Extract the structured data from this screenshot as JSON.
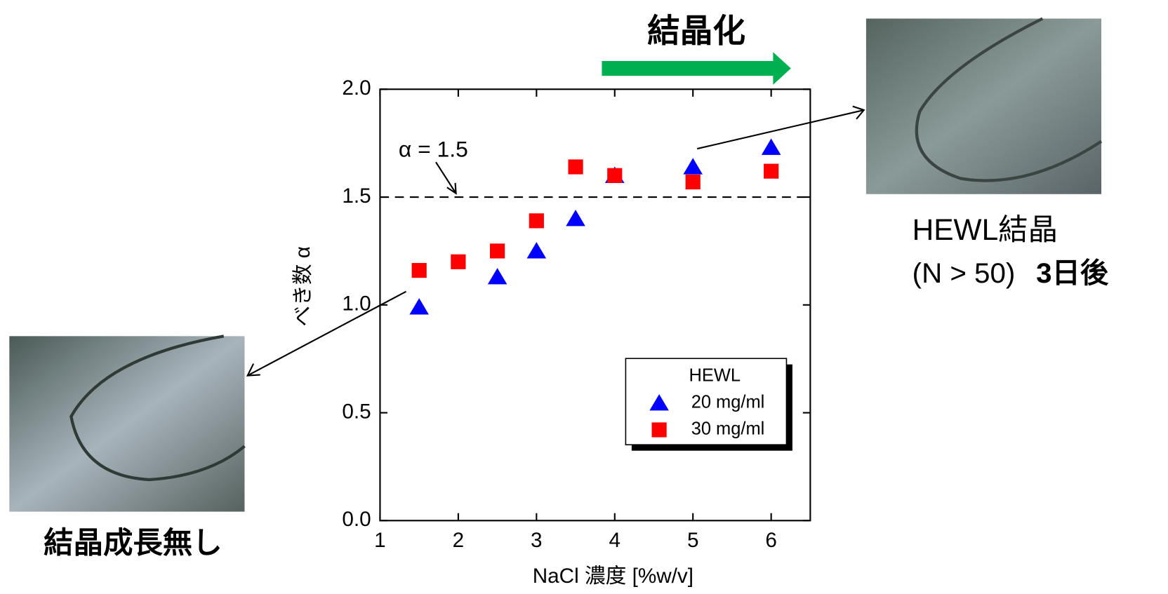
{
  "chart_data": {
    "type": "scatter",
    "title": "結晶化",
    "x_label": "NaCl 濃度 [%w/v]",
    "y_label": "べき数 α",
    "xlim": [
      1,
      6.5
    ],
    "xticks": [
      1,
      2,
      3,
      4,
      5,
      6
    ],
    "ylim": [
      0,
      2
    ],
    "yticks": [
      {
        "value": 0,
        "label": "0.0"
      },
      0.5,
      {
        "value": 1,
        "label": "1.0"
      },
      1.5,
      {
        "value": 2,
        "label": "2.0"
      }
    ],
    "reference_line": 1.5,
    "reference_label": "α = 1.5",
    "legend_title": "HEWL",
    "legend_position": "lower right",
    "series": [
      {
        "name": "20 mg/ml",
        "color": "#0000ff",
        "marker": "triangle",
        "x": [
          1.5,
          2.5,
          3,
          3.5,
          4,
          5,
          6
        ],
        "values": [
          0.99,
          1.13,
          1.25,
          1.4,
          1.6,
          1.64,
          1.73
        ]
      },
      {
        "name": "30 mg/ml",
        "color": "#ff0000",
        "marker": "square",
        "x": [
          1.5,
          2,
          2.5,
          3,
          3.5,
          4,
          5,
          6
        ],
        "values": [
          1.16,
          1.2,
          1.25,
          1.39,
          1.64,
          1.6,
          1.57,
          1.62
        ]
      }
    ],
    "annotations": {
      "right_caption": "HEWL結晶",
      "right_condition": "(N > 50)",
      "right_time": "3日後",
      "left_caption": "結晶成長無し"
    }
  }
}
